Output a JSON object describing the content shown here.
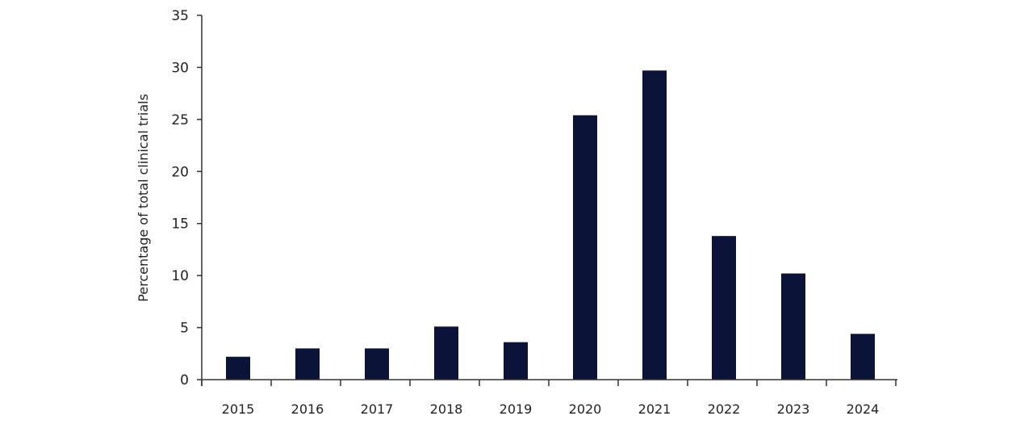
{
  "chart_data": {
    "type": "bar",
    "title": "",
    "xlabel": "",
    "ylabel": "Percentage of total clinical trials",
    "categories": [
      "2015",
      "2016",
      "2017",
      "2018",
      "2019",
      "2020",
      "2021",
      "2022",
      "2023",
      "2024"
    ],
    "values": [
      2.2,
      3.0,
      3.0,
      5.1,
      3.6,
      25.4,
      29.7,
      13.8,
      10.2,
      4.4
    ],
    "ylim": [
      0,
      35
    ],
    "yticks": [
      0,
      5,
      10,
      15,
      20,
      25,
      30,
      35
    ],
    "grid": false,
    "bar_color": "#0b1438"
  }
}
